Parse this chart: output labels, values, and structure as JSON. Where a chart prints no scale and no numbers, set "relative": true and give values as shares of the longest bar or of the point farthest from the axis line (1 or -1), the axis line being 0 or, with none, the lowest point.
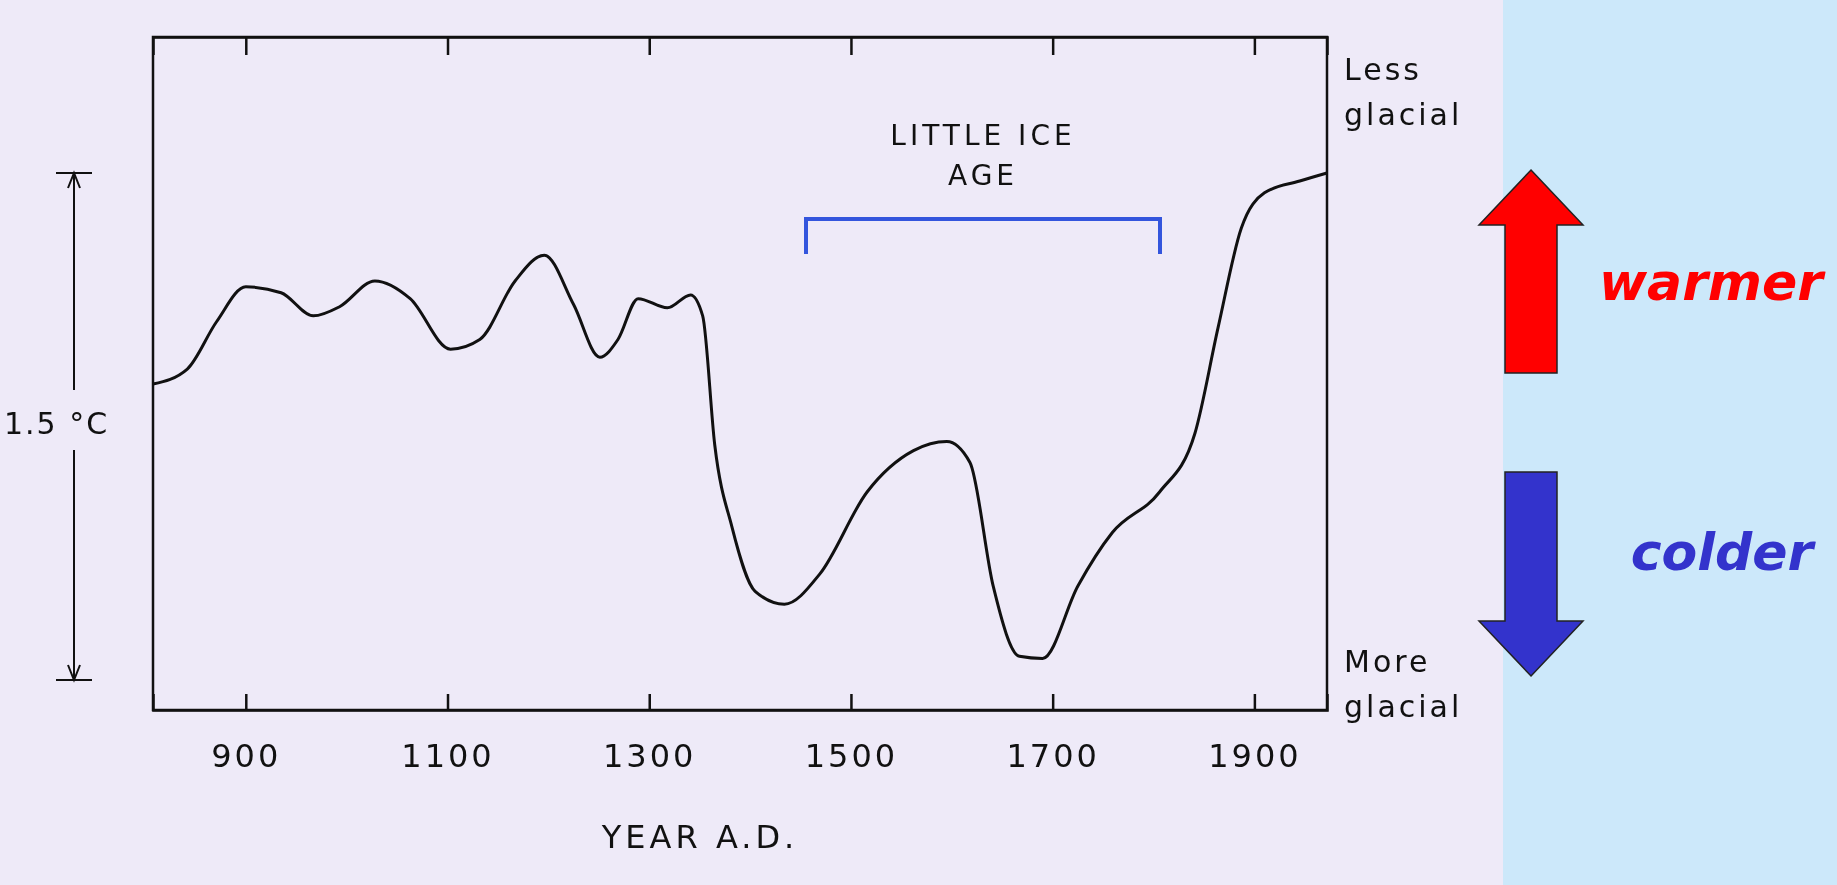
{
  "chart_data": {
    "type": "line",
    "relative": true,
    "xlabel": "YEAR A.D.",
    "xlim": [
      808,
      1972
    ],
    "xticks": [
      900,
      1100,
      1300,
      1500,
      1700,
      1900
    ],
    "series": [
      {
        "color": "#111111",
        "x": [
          808,
          842,
          871,
          900,
          935,
          967,
          993,
          1028,
          1063,
          1103,
          1132,
          1167,
          1196,
          1225,
          1251,
          1269,
          1289,
          1318,
          1341,
          1353,
          1365,
          1382,
          1405,
          1434,
          1469,
          1516,
          1562,
          1595,
          1618,
          1641,
          1667,
          1690,
          1725,
          1759,
          1806,
          1841,
          1864,
          1887,
          1910,
          1945,
          1972
        ],
        "values": [
          0.607,
          0.635,
          0.723,
          0.788,
          0.777,
          0.734,
          0.751,
          0.799,
          0.766,
          0.672,
          0.69,
          0.799,
          0.847,
          0.755,
          0.657,
          0.69,
          0.766,
          0.749,
          0.773,
          0.734,
          0.493,
          0.341,
          0.221,
          0.197,
          0.253,
          0.406,
          0.483,
          0.5,
          0.461,
          0.231,
          0.1,
          0.096,
          0.231,
          0.33,
          0.406,
          0.515,
          0.712,
          0.897,
          0.963,
          0.985,
          1
        ]
      }
    ],
    "annotations": [
      "1.5 °C",
      "Less glacial",
      "More glacial",
      "warmer",
      "colder",
      "LITTLE ICE AGE"
    ],
    "line_style": "solid"
  }
}
